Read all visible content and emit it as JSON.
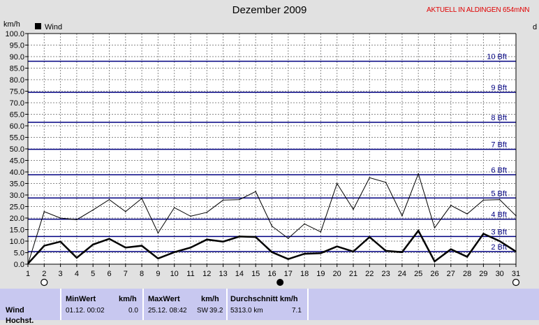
{
  "header": {
    "title": "Dezember 2009",
    "live_label": "AKTUELL IN ALDINGEN 654mNN"
  },
  "chart_data": {
    "type": "line",
    "title": "Dezember 2009",
    "ylabel": "km/h",
    "ylabel_right": "d",
    "ylim": [
      0,
      100
    ],
    "y_ticks": [
      "0.0",
      "5.0",
      "10.0",
      "15.0",
      "20.0",
      "25.0",
      "30.0",
      "35.0",
      "40.0",
      "45.0",
      "50.0",
      "55.0",
      "60.0",
      "65.0",
      "70.0",
      "75.0",
      "80.0",
      "85.0",
      "90.0",
      "95.0",
      "100.0"
    ],
    "x": [
      1,
      2,
      3,
      4,
      5,
      6,
      7,
      8,
      9,
      10,
      11,
      12,
      13,
      14,
      15,
      16,
      17,
      18,
      19,
      20,
      21,
      22,
      23,
      24,
      25,
      26,
      27,
      28,
      29,
      30,
      31
    ],
    "grid": true,
    "legend": {
      "label": "Wind",
      "position": "top-left"
    },
    "series": [
      {
        "name": "Wind",
        "role": "average",
        "color": "#000000",
        "values": [
          0.2,
          8.0,
          9.8,
          2.8,
          8.5,
          11.0,
          7.2,
          8.0,
          2.5,
          5.2,
          7.2,
          10.7,
          9.8,
          12.0,
          11.8,
          5.2,
          2.2,
          4.5,
          4.8,
          7.7,
          5.5,
          11.8,
          5.8,
          5.2,
          14.5,
          1.2,
          6.5,
          3.2,
          13.2,
          10.0,
          5.5
        ]
      },
      {
        "role": "gust",
        "color": "#000000",
        "values": [
          0.0,
          22.8,
          20.0,
          19.3,
          23.5,
          28.0,
          22.8,
          28.5,
          13.5,
          24.5,
          20.8,
          22.5,
          27.8,
          28.0,
          31.5,
          16.5,
          11.2,
          17.5,
          14.0,
          35.0,
          23.8,
          37.5,
          35.5,
          21.0,
          39.2,
          15.8,
          25.5,
          21.8,
          27.8,
          28.0,
          21.0
        ]
      }
    ],
    "beaufort_lines": [
      {
        "label": "2 Bft",
        "value": 5.5
      },
      {
        "label": "3 Bft",
        "value": 12.0
      },
      {
        "label": "4 Bft",
        "value": 19.5
      },
      {
        "label": "5 Bft",
        "value": 28.7
      },
      {
        "label": "6 Bft",
        "value": 38.8
      },
      {
        "label": "7 Bft",
        "value": 49.8
      },
      {
        "label": "8 Bft",
        "value": 61.5
      },
      {
        "label": "9 Bft",
        "value": 74.5
      },
      {
        "label": "10 Bft",
        "value": 88.0
      }
    ],
    "moon_phases": [
      {
        "day": 2,
        "phase": "full"
      },
      {
        "day": 16.5,
        "phase": "new"
      },
      {
        "day": 31,
        "phase": "full"
      }
    ],
    "colors": {
      "beaufort": "#000080",
      "grid": "#888888",
      "background": "#ffffff"
    }
  },
  "stats": {
    "row_label": "Wind",
    "row_label_2": "Hochst.",
    "min": {
      "header": "MinWert",
      "unit": "km/h",
      "date": "01.12.  00:02",
      "value": "0.0"
    },
    "max": {
      "header": "MaxWert",
      "unit": "km/h",
      "date": "25.12.  08:42",
      "dir": "SW",
      "value": "39.2"
    },
    "avg": {
      "header": "Durchschnitt km/h",
      "total": "5313.0 km",
      "value": "7.1"
    }
  }
}
